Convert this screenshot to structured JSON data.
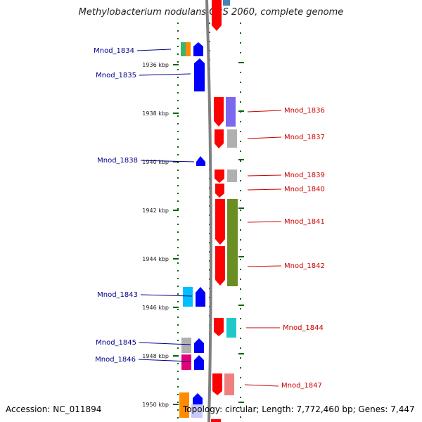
{
  "title": "Methylobacterium nodulans ORS 2060, complete genome",
  "accession": "Accession: NC_011894",
  "summary": "Topology: circular; Length: 7,772,460 bp; Genes: 7,447",
  "ticks": [
    {
      "label": "1936 kbp",
      "kbp": 1936
    },
    {
      "label": "1938 kbp",
      "kbp": 1938
    },
    {
      "label": "1940 kbp",
      "kbp": 1940
    },
    {
      "label": "1942 kbp",
      "kbp": 1942
    },
    {
      "label": "1944 kbp",
      "kbp": 1944
    },
    {
      "label": "1946 kbp",
      "kbp": 1946
    },
    {
      "label": "1948 kbp",
      "kbp": 1948
    },
    {
      "label": "1950 kbp",
      "kbp": 1950
    }
  ],
  "left_genes": [
    {
      "label": "Mnod_1834"
    },
    {
      "label": "Mnod_1835"
    },
    {
      "label": "Mnod_1838"
    },
    {
      "label": "Mnod_1843"
    },
    {
      "label": "Mnod_1845"
    },
    {
      "label": "Mnod_1846"
    }
  ],
  "right_genes": [
    {
      "label": "Mnod_1836"
    },
    {
      "label": "Mnod_1837"
    },
    {
      "label": "Mnod_1839"
    },
    {
      "label": "Mnod_1840"
    },
    {
      "label": "Mnod_1841"
    },
    {
      "label": "Mnod_1842"
    },
    {
      "label": "Mnod_1844"
    },
    {
      "label": "Mnod_1847"
    }
  ],
  "colors": {
    "forward_strand": "#ff0000",
    "reverse_strand": "#0000ff",
    "backbone": "#808080",
    "tick": "#006400",
    "label_left": "#00008b",
    "label_right": "#cc0000"
  }
}
